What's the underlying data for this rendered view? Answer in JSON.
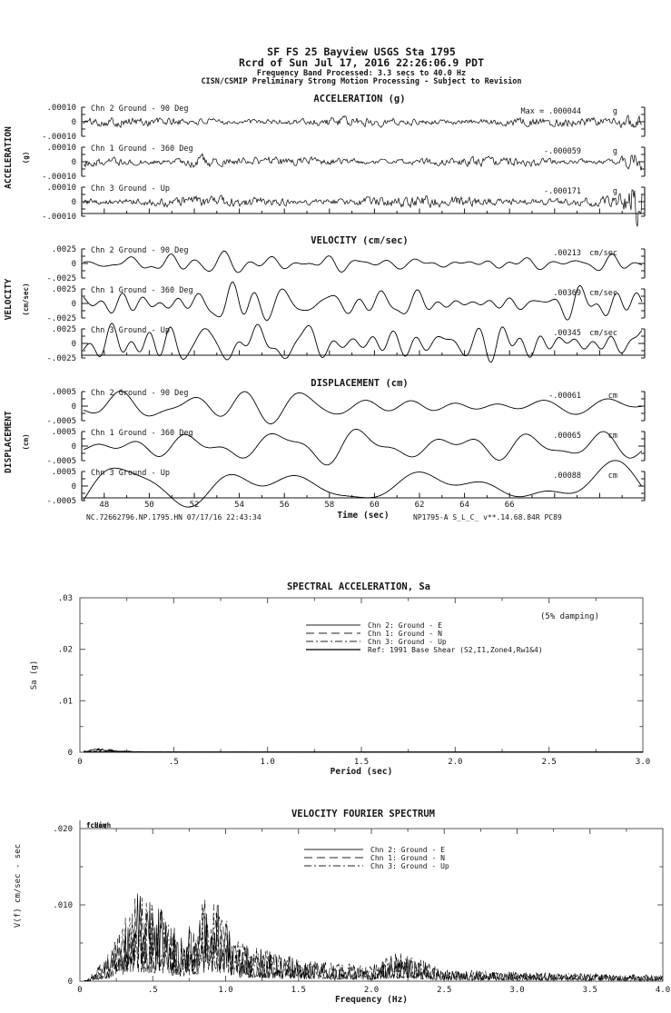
{
  "page": {
    "background": "#ffffff",
    "ink": "#151515"
  },
  "header": {
    "line1": "SF FS 25 Bayview     USGS Sta 1795",
    "line2": "Rcrd of Sun Jul 17, 2016 22:26:06.9 PDT",
    "line3": "Frequency Band Processed: 3.3 secs to 40.0 Hz",
    "line4": "CISN/CSMIP Preliminary Strong Motion Processing - Subject to Revision"
  },
  "timeseries": {
    "time_axis": {
      "label": "Time (sec)",
      "ticks": [
        48,
        50,
        52,
        54,
        56,
        58,
        60,
        62,
        64,
        66
      ],
      "tmin": 47,
      "tmax": 72
    },
    "footer_left": "NC.72662796.NP.1795.HN 07/17/16 22:43:34",
    "footer_right": "NP1795-A  S_L_C_  v**.14.68.84R PC89",
    "panels": [
      {
        "title": "ACCELERATION (g)",
        "side_label": "ACCELERATION",
        "side_unit": "(g)",
        "scale_label": ".00010",
        "zero": "0",
        "scale_neg": "-.00010",
        "scale_value": 0.0001,
        "channels": [
          {
            "label": "Chn 2  Ground - 90 Deg",
            "peak": "Max =   .000044",
            "unit": "g",
            "peak_value": 4.4e-05
          },
          {
            "label": "Chn 1  Ground - 360 Deg",
            "peak": "-.000059",
            "unit": "g",
            "peak_value": -5.9e-05
          },
          {
            "label": "Chn 3  Ground - Up",
            "peak": "-.000171",
            "unit": "g",
            "peak_value": -0.000171
          }
        ]
      },
      {
        "title": "VELOCITY (cm/sec)",
        "side_label": "VELOCITY",
        "side_unit": "(cm/sec)",
        "scale_label": ".0025",
        "zero": "0",
        "scale_neg": "-.0025",
        "scale_value": 0.0025,
        "channels": [
          {
            "label": "Chn 2  Ground - 90 Deg",
            "peak": ".00213",
            "unit": "cm/sec",
            "peak_value": 0.00213
          },
          {
            "label": "Chn 1  Ground - 360 Deg",
            "peak": ".00369",
            "unit": "cm/sec",
            "peak_value": 0.00369
          },
          {
            "label": "Chn 3  Ground - Up",
            "peak": ".00345",
            "unit": "cm/sec",
            "peak_value": 0.00345
          }
        ]
      },
      {
        "title": "DISPLACEMENT (cm)",
        "side_label": "DISPLACEMENT",
        "side_unit": "(cm)",
        "scale_label": ".0005",
        "zero": "0",
        "scale_neg": "-.0005",
        "scale_value": 0.0005,
        "channels": [
          {
            "label": "Chn 2  Ground - 90 Deg",
            "peak": "-.00061",
            "unit": "cm",
            "peak_value": -0.00061
          },
          {
            "label": "Chn 1  Ground - 360 Deg",
            "peak": ".00065",
            "unit": "cm",
            "peak_value": 0.00065
          },
          {
            "label": "Chn 3  Ground - Up",
            "peak": ".00088",
            "unit": "cm",
            "peak_value": 0.00088
          }
        ]
      }
    ]
  },
  "sa_plot": {
    "title": "SPECTRAL ACCELERATION, Sa",
    "damping_note": "(5% damping)",
    "xlabel": "Period (sec)",
    "ylabel": "Sa (g)",
    "xticks": [
      "0",
      ".5",
      "1.0",
      "1.5",
      "2.0",
      "2.5",
      "3.0"
    ],
    "xtick_values": [
      0,
      0.5,
      1,
      1.5,
      2,
      2.5,
      3
    ],
    "yticks": [
      ".03",
      ".02",
      ".01",
      "0"
    ],
    "ytick_values": [
      0.03,
      0.02,
      0.01,
      0
    ],
    "legend": [
      "Chn 2: Ground - E",
      "Chn 1: Ground - N",
      "Chn 3: Ground - Up",
      "Ref: 1991 Base Shear (S2,I1,Zone4,Rw1&4)"
    ]
  },
  "fourier_plot": {
    "title": "VELOCITY FOURIER SPECTRUM",
    "xlabel": "Frequency (Hz)",
    "ylabel": "V(f)  cm/sec - sec",
    "corner_labels": [
      "fcLow",
      "fcHigh"
    ],
    "xticks": [
      "0",
      ".5",
      "1.0",
      "1.5",
      "2.0",
      "2.5",
      "3.0",
      "3.5",
      "4.0"
    ],
    "xtick_values": [
      0,
      0.5,
      1,
      1.5,
      2,
      2.5,
      3,
      3.5,
      4
    ],
    "yticks": [
      ".020",
      ".010",
      "0"
    ],
    "ytick_values": [
      0.02,
      0.01,
      0
    ],
    "legend": [
      "Chn 2: Ground - E",
      "Chn 1: Ground - N",
      "Chn 3: Ground - Up"
    ]
  },
  "chart_data": [
    {
      "type": "line",
      "title": "ACCELERATION (g)",
      "xlabel": "Time (sec)",
      "x_range": [
        47,
        72
      ],
      "trace_ylim": [
        -0.0001,
        0.0001
      ],
      "series": [
        {
          "name": "Chn 2 Ground - 90 Deg",
          "peak_g": 4.4e-05
        },
        {
          "name": "Chn 1 Ground - 360 Deg",
          "peak_g": -5.9e-05
        },
        {
          "name": "Chn 3 Ground - Up",
          "peak_g": -0.000171
        }
      ],
      "note": "Low-amplitude broadband noise; Chn 3 shows a strong burst at the right edge of the window"
    },
    {
      "type": "line",
      "title": "VELOCITY (cm/sec)",
      "xlabel": "Time (sec)",
      "x_range": [
        47,
        72
      ],
      "trace_ylim": [
        -0.0025,
        0.0025
      ],
      "series": [
        {
          "name": "Chn 2 Ground - 90 Deg",
          "peak_cm_per_s": 0.00213
        },
        {
          "name": "Chn 1 Ground - 360 Deg",
          "peak_cm_per_s": 0.00369
        },
        {
          "name": "Chn 3 Ground - Up",
          "peak_cm_per_s": 0.00345
        }
      ],
      "note": "Smooth oscillations near 0.5-1 Hz; Chn 1 has its largest excursions near t=53 sec"
    },
    {
      "type": "line",
      "title": "DISPLACEMENT (cm)",
      "xlabel": "Time (sec)",
      "x_range": [
        47,
        72
      ],
      "trace_ylim": [
        -0.0005,
        0.0005
      ],
      "series": [
        {
          "name": "Chn 2 Ground - 90 Deg",
          "peak_cm": -0.00061
        },
        {
          "name": "Chn 1 Ground - 360 Deg",
          "peak_cm": 0.00065
        },
        {
          "name": "Chn 3 Ground - Up",
          "peak_cm": 0.00088
        }
      ],
      "note": "Long-period swings; Chn 3 crosses below the time axis near t=54 sec"
    },
    {
      "type": "line",
      "title": "SPECTRAL ACCELERATION, Sa",
      "xlabel": "Period (sec)",
      "ylabel": "Sa (g)",
      "xlim": [
        0,
        3
      ],
      "ylim": [
        0,
        0.03
      ],
      "damping": "5%",
      "series": [
        "Chn 2: Ground - E",
        "Chn 1: Ground - N",
        "Chn 3: Ground - Up",
        "Ref: 1991 Base Shear (S2,I1,Zone4,Rw1&4)"
      ],
      "approx_points": [
        [
          0.02,
          0.0002
        ],
        [
          0.05,
          0.0004
        ],
        [
          0.1,
          0.0006
        ],
        [
          0.15,
          0.0005
        ],
        [
          0.2,
          0.0003
        ],
        [
          0.3,
          0.0001
        ],
        [
          0.5,
          3e-05
        ],
        [
          1.0,
          2e-05
        ],
        [
          2.0,
          1e-05
        ],
        [
          3.0,
          1e-05
        ]
      ],
      "note": "All spectra are nearly zero at this axis scale; visible only as a tiny bump below ~0.3 sec"
    },
    {
      "type": "line",
      "title": "VELOCITY FOURIER SPECTRUM",
      "xlabel": "Frequency (Hz)",
      "ylabel": "V(f) cm/sec - sec",
      "xlim": [
        0,
        4
      ],
      "ylim": [
        0,
        0.02
      ],
      "series": [
        "Chn 2: Ground - E",
        "Chn 1: Ground - N",
        "Chn 3: Ground - Up"
      ],
      "approx_envelope": [
        [
          0.05,
          0.0002
        ],
        [
          0.2,
          0.004
        ],
        [
          0.3,
          0.009
        ],
        [
          0.35,
          0.012
        ],
        [
          0.5,
          0.011
        ],
        [
          0.7,
          0.006
        ],
        [
          0.9,
          0.012
        ],
        [
          1.1,
          0.005
        ],
        [
          1.5,
          0.003
        ],
        [
          2.0,
          0.002
        ],
        [
          2.2,
          0.004
        ],
        [
          2.5,
          0.0015
        ],
        [
          3.0,
          0.0012
        ],
        [
          3.5,
          0.001
        ],
        [
          4.0,
          0.0008
        ]
      ],
      "note": "Spiky spectra peaking near 0.35-0.5 Hz and 0.9 Hz, decaying above 1.5 Hz with a small bump at 2.2 Hz"
    }
  ]
}
